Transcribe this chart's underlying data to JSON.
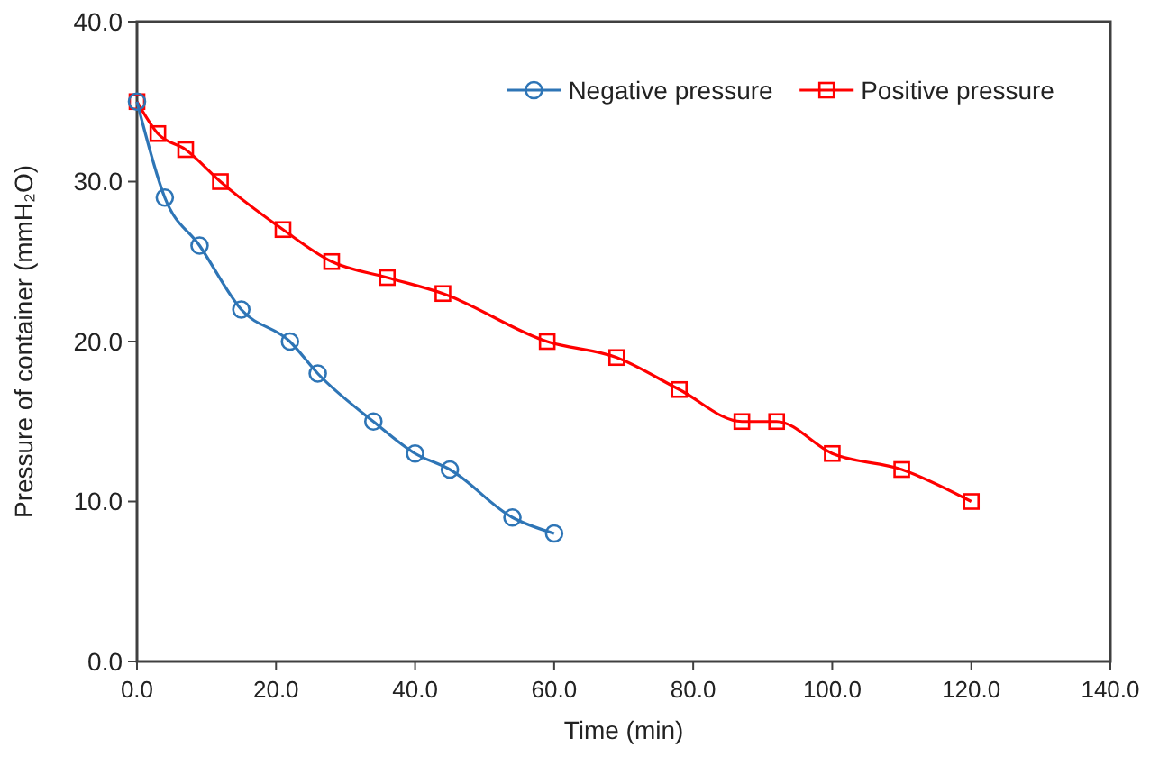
{
  "chart_data": {
    "type": "line",
    "xlabel": "Time (min)",
    "ylabel": "Pressure of container (mmH₂O)",
    "xlim": [
      0,
      140
    ],
    "xticks": [
      {
        "value": 0,
        "label": "0.0"
      },
      {
        "value": 20,
        "label": "20.0"
      },
      {
        "value": 40,
        "label": "40.0"
      },
      {
        "value": 60,
        "label": "60.0"
      },
      {
        "value": 80,
        "label": "80.0"
      },
      {
        "value": 100,
        "label": "100.0"
      },
      {
        "value": 120,
        "label": "120.0"
      },
      {
        "value": 140,
        "label": "140.0"
      }
    ],
    "ylim": [
      0,
      40
    ],
    "yticks": [
      {
        "value": 0,
        "label": "0.0"
      },
      {
        "value": 10,
        "label": "10.0"
      },
      {
        "value": 20,
        "label": "20.0"
      },
      {
        "value": 30,
        "label": "30.0"
      },
      {
        "value": 40,
        "label": "40.0"
      }
    ],
    "grid": false,
    "legend": "top right",
    "series": [
      {
        "name": "Negative pressure",
        "color": "#2e75b6",
        "marker": "circle",
        "x": [
          0,
          4,
          9,
          15,
          22,
          26,
          34,
          40,
          45,
          54,
          60
        ],
        "values": [
          35,
          29,
          26,
          22,
          20,
          18,
          15,
          13,
          12,
          9,
          8
        ]
      },
      {
        "name": "Positive pressure",
        "color": "#ff0000",
        "marker": "square",
        "x": [
          0,
          3,
          7,
          12,
          21,
          28,
          36,
          44,
          59,
          69,
          78,
          87,
          92,
          100,
          110,
          120
        ],
        "values": [
          35,
          33,
          32,
          30,
          27,
          25,
          24,
          23,
          20,
          19,
          17,
          15,
          15,
          13,
          12,
          10
        ]
      }
    ]
  }
}
